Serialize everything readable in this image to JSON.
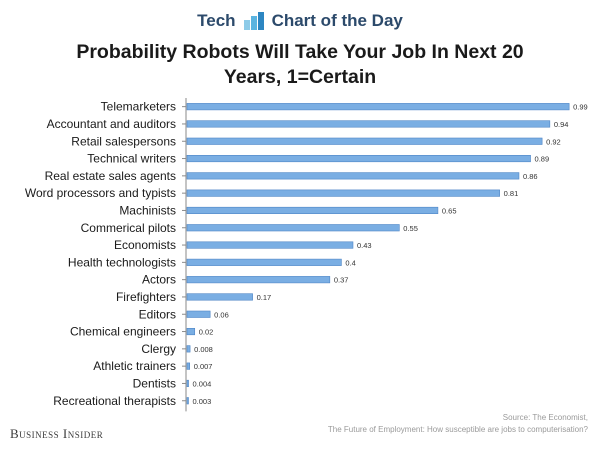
{
  "header": {
    "left": "Tech",
    "right": "Chart of the Day",
    "logo_icon": "bar-chart-icon"
  },
  "chart_data": {
    "type": "bar",
    "orientation": "horizontal",
    "title": "Probability Robots Will Take Your Job In Next 20 Years, 1=Certain",
    "title_lines": [
      "Probability Robots Will Take Your Job In Next 20",
      "Years, 1=Certain"
    ],
    "categories": [
      "Telemarketers",
      "Accountant and auditors",
      "Retail salespersons",
      "Technical writers",
      "Real estate sales agents",
      "Word processors and typists",
      "Machinists",
      "Commerical pilots",
      "Economists",
      "Health technologists",
      "Actors",
      "Firefighters",
      "Editors",
      "Chemical engineers",
      "Clergy",
      "Athletic trainers",
      "Dentists",
      "Recreational therapists"
    ],
    "values": [
      0.99,
      0.94,
      0.92,
      0.89,
      0.86,
      0.81,
      0.65,
      0.55,
      0.43,
      0.4,
      0.37,
      0.17,
      0.06,
      0.02,
      0.008,
      0.007,
      0.004,
      0.003
    ],
    "value_labels": [
      "0.99",
      "0.94",
      "0.92",
      "0.89",
      "0.86",
      "0.81",
      "0.65",
      "0.55",
      "0.43",
      "0.4",
      "0.37",
      "0.17",
      "0.06",
      "0.02",
      "0.008",
      "0.007",
      "0.004",
      "0.003"
    ],
    "xlim": [
      0,
      1
    ],
    "grid": false,
    "legend": "none",
    "bar_color": "#7aaee3",
    "bar_edge_color": "#4f86c6"
  },
  "footer": {
    "brand": "Business Insider",
    "source_lines": [
      "Source: The Economist,",
      "The Future of Employment: How susceptible are jobs to computerisation?"
    ]
  }
}
